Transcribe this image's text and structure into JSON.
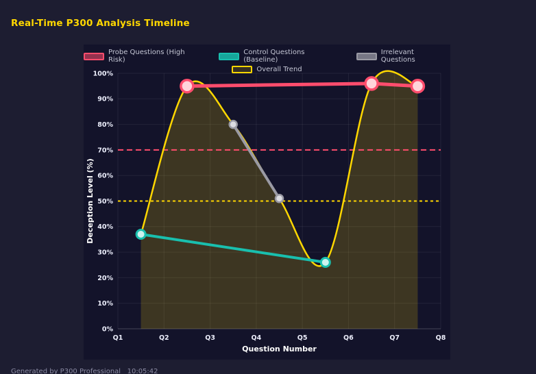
{
  "page": {
    "title": "Real-Time P300 Analysis Timeline",
    "footer": "Generated by P300 Professional   10:05:42"
  },
  "chart_data": {
    "type": "line",
    "title": "Real-Time P300 Analysis Timeline",
    "xlabel": "Question Number",
    "ylabel": "Deception Level (%)",
    "x_ticks": [
      "Q1",
      "Q2",
      "Q3",
      "Q4",
      "Q5",
      "Q6",
      "Q7",
      "Q8"
    ],
    "y_ticks": [
      "0%",
      "10%",
      "20%",
      "30%",
      "40%",
      "50%",
      "60%",
      "70%",
      "80%",
      "90%",
      "100%"
    ],
    "xlim": [
      1,
      8
    ],
    "ylim": [
      0,
      100
    ],
    "grid": true,
    "legend_position": "top",
    "series": [
      {
        "name": "Probe Questions (High Risk)",
        "kind": "probe",
        "color": "#ff4d6d",
        "point_fill": "#ffd3da",
        "swatch_fill": "rgba(255,77,109,0.55)",
        "x": [
          2.5,
          6.5,
          7.5
        ],
        "values": [
          95,
          96,
          95
        ]
      },
      {
        "name": "Control Questions (Baseline)",
        "kind": "control",
        "color": "#19bfae",
        "point_fill": "#cdf3ef",
        "swatch_fill": "rgba(25,191,174,0.85)",
        "x": [
          1.5,
          5.5
        ],
        "values": [
          37,
          26
        ]
      },
      {
        "name": "Irrelevant Questions",
        "kind": "irrelevant",
        "color": "#9a9aa4",
        "point_fill": "#dcdce2",
        "swatch_fill": "rgba(154,154,164,0.75)",
        "x": [
          3.5,
          4.5
        ],
        "values": [
          80,
          51
        ]
      },
      {
        "name": "Overall Trend",
        "kind": "trend",
        "color": "#ffd700",
        "fill": "rgba(255,215,0,0.18)",
        "swatch_fill": "rgba(255,215,0,0.15)",
        "smooth": true,
        "x": [
          1.5,
          2.5,
          3.5,
          4.5,
          5.5,
          6.5,
          7.5
        ],
        "values": [
          37,
          95,
          80,
          51,
          26,
          96,
          95
        ]
      }
    ],
    "thresholds": [
      {
        "value": 70,
        "color": "#ff4d6d",
        "style": "dashed"
      },
      {
        "value": 50,
        "color": "#ffd700",
        "style": "dashed"
      }
    ]
  }
}
